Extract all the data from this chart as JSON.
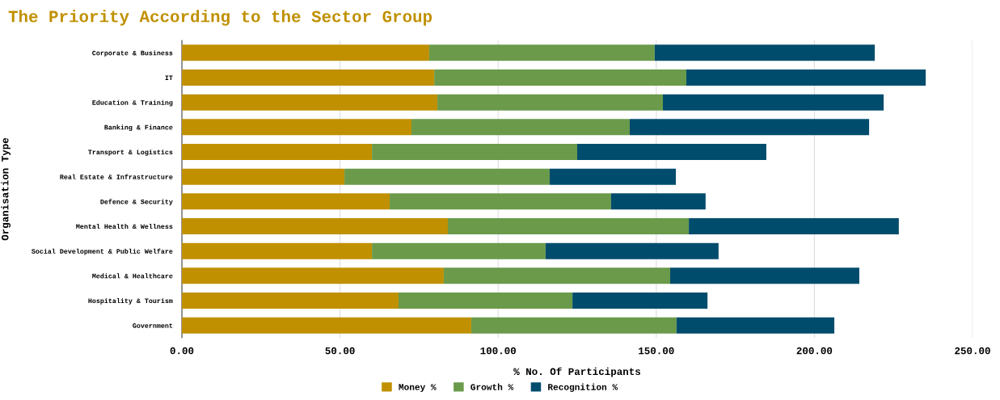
{
  "chart_data": {
    "type": "bar",
    "orientation": "horizontal",
    "stacked": true,
    "title": "The Priority According to the Sector Group",
    "xlabel": "% No. Of Participants",
    "ylabel": "Organisation Type",
    "categories": [
      "Corporate & Business",
      "IT",
      "Education & Training",
      "Banking & Finance",
      "Transport & Logistics",
      "Real Estate & Infrastructure",
      "Defence & Security",
      "Mental Health & Wellness",
      "Social Development & Public Welfare",
      "Medical & Healthcare",
      "Hospitality & Tourism",
      "Government"
    ],
    "series": [
      {
        "name": "Money %",
        "color": "#c09000",
        "values": [
          78.2,
          79.8,
          80.8,
          72.6,
          60.1,
          51.4,
          65.7,
          84.1,
          60.1,
          82.8,
          68.5,
          91.5
        ]
      },
      {
        "name": "Growth %",
        "color": "#6a9a4a",
        "values": [
          71.3,
          79.7,
          71.3,
          69.0,
          64.9,
          64.9,
          70.0,
          76.2,
          54.9,
          71.6,
          55.0,
          64.9
        ]
      },
      {
        "name": "Recognition %",
        "color": "#004c6d",
        "values": [
          69.6,
          75.7,
          69.8,
          75.7,
          59.8,
          39.9,
          29.9,
          66.4,
          54.7,
          59.8,
          42.7,
          49.9
        ]
      }
    ],
    "xlim": [
      0,
      250
    ],
    "xticks": [
      {
        "value": 0,
        "label": "0.00"
      },
      {
        "value": 50,
        "label": "50.00"
      },
      {
        "value": 100,
        "label": "100.00"
      },
      {
        "value": 150,
        "label": "150.00"
      },
      {
        "value": 200,
        "label": "200.00"
      },
      {
        "value": 250,
        "label": "250.00"
      }
    ],
    "grid": "x",
    "legend": "bottom"
  }
}
